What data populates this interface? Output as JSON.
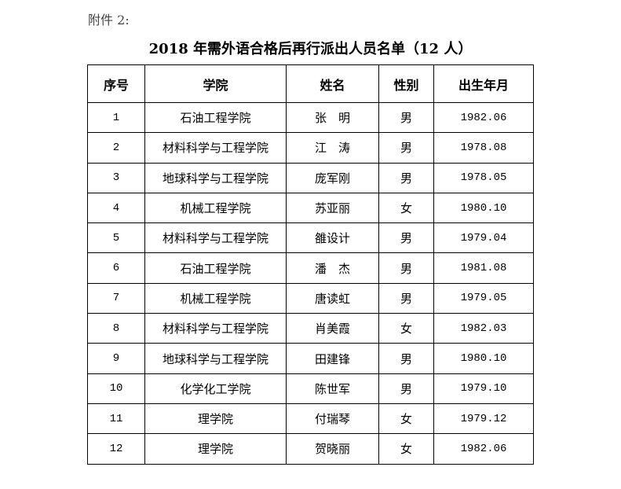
{
  "attachment_label": "附件 2:",
  "title": "2018 年需外语合格后再行派出人员名单（12 人）",
  "table": {
    "headers": [
      "序号",
      "学院",
      "姓名",
      "性别",
      "出生年月"
    ],
    "rows": [
      [
        "1",
        "石油工程学院",
        "张　明",
        "男",
        "1982.06"
      ],
      [
        "2",
        "材料科学与工程学院",
        "江　涛",
        "男",
        "1978.08"
      ],
      [
        "3",
        "地球科学与工程学院",
        "庞军刚",
        "男",
        "1978.05"
      ],
      [
        "4",
        "机械工程学院",
        "苏亚丽",
        "女",
        "1980.10"
      ],
      [
        "5",
        "材料科学与工程学院",
        "雒设计",
        "男",
        "1979.04"
      ],
      [
        "6",
        "石油工程学院",
        "潘　杰",
        "男",
        "1981.08"
      ],
      [
        "7",
        "机械工程学院",
        "唐读虹",
        "男",
        "1979.05"
      ],
      [
        "8",
        "材料科学与工程学院",
        "肖美霞",
        "女",
        "1982.03"
      ],
      [
        "9",
        "地球科学与工程学院",
        "田建锋",
        "男",
        "1980.10"
      ],
      [
        "10",
        "化学化工学院",
        "陈世军",
        "男",
        "1979.10"
      ],
      [
        "11",
        "理学院",
        "付瑞琴",
        "女",
        "1979.12"
      ],
      [
        "12",
        "理学院",
        "贺晓丽",
        "女",
        "1982.06"
      ]
    ]
  }
}
